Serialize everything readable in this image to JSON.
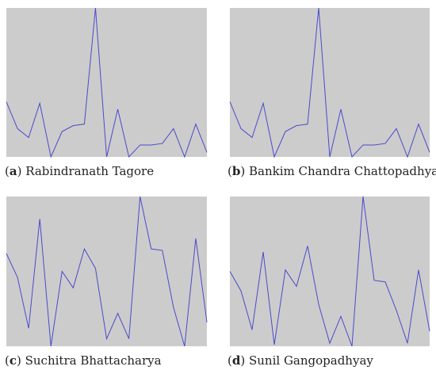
{
  "chart_data": [
    {
      "type": "line",
      "letter": "a",
      "caption_text": "Rabindranath Tagore",
      "color": "#4a4acc",
      "ylim": [
        0,
        1
      ],
      "values": [
        0.37,
        0.19,
        0.13,
        0.36,
        0.0,
        0.17,
        0.21,
        0.22,
        1.0,
        0.0,
        0.32,
        0.0,
        0.08,
        0.08,
        0.09,
        0.19,
        0.0,
        0.22,
        0.03
      ]
    },
    {
      "type": "line",
      "letter": "b",
      "caption_text": "Bankim Chandra Chattopadhyay",
      "color": "#4a4acc",
      "ylim": [
        0,
        1
      ],
      "values": [
        0.37,
        0.19,
        0.13,
        0.36,
        0.0,
        0.17,
        0.21,
        0.22,
        1.0,
        0.0,
        0.32,
        0.0,
        0.08,
        0.08,
        0.09,
        0.19,
        0.0,
        0.22,
        0.03
      ]
    },
    {
      "type": "line",
      "letter": "c",
      "caption_text": "Suchitra Bhattacharya",
      "color": "#4a4acc",
      "ylim": [
        0,
        1
      ],
      "values": [
        0.62,
        0.46,
        0.12,
        0.85,
        0.0,
        0.5,
        0.39,
        0.65,
        0.52,
        0.05,
        0.22,
        0.05,
        1.0,
        0.65,
        0.64,
        0.26,
        0.0,
        0.72,
        0.16
      ]
    },
    {
      "type": "line",
      "letter": "d",
      "caption_text": "Sunil Gangopadhyay",
      "color": "#4a4acc",
      "ylim": [
        0,
        1
      ],
      "values": [
        0.5,
        0.37,
        0.11,
        0.63,
        0.01,
        0.51,
        0.4,
        0.67,
        0.28,
        0.02,
        0.2,
        0.0,
        1.0,
        0.44,
        0.43,
        0.24,
        0.02,
        0.51,
        0.1
      ]
    }
  ]
}
